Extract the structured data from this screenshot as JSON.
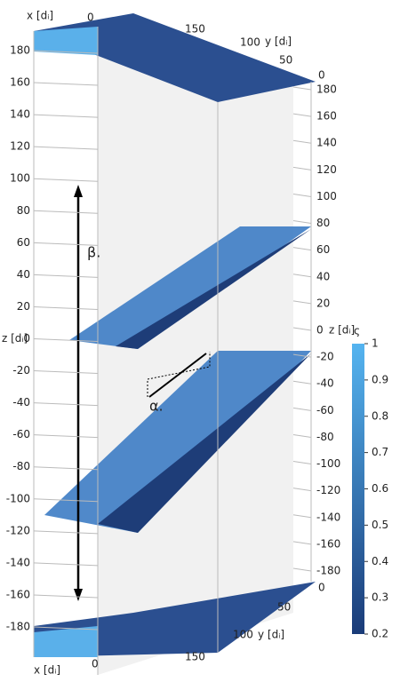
{
  "axes": {
    "x_label": "x [dᵢ]",
    "y_label": "y [dᵢ]",
    "z_label": "z [dᵢ]",
    "z_ticks": [
      180,
      160,
      140,
      120,
      100,
      80,
      60,
      40,
      20,
      0,
      -20,
      -40,
      -60,
      -80,
      -100,
      -120,
      -140,
      -160,
      -180
    ],
    "x_ticks": [
      0,
      150
    ],
    "y_ticks": [
      100,
      50,
      0
    ]
  },
  "colorbar": {
    "label": "ς",
    "range": [
      0.2,
      1
    ],
    "ticks": [
      1,
      0.9,
      0.8,
      0.7,
      0.6,
      0.5,
      0.4,
      0.3,
      0.2
    ]
  },
  "annotations": [
    "β.",
    "α."
  ]
}
